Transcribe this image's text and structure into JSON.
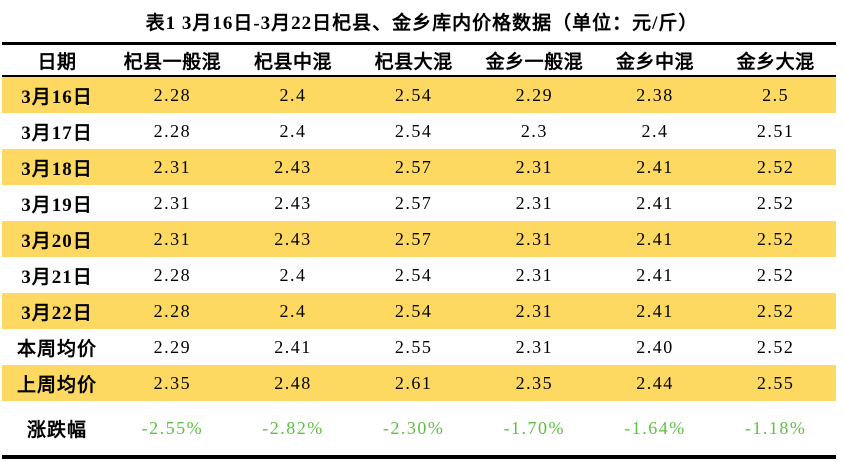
{
  "title": "表1  3月16日-3月22日杞县、金乡库内价格数据（单位：元/斤）",
  "colors": {
    "row_highlight": "#fed961",
    "change_text": "#5fc143",
    "border": "#000000"
  },
  "chart_data": {
    "type": "table",
    "title": "表1  3月16日-3月22日杞县、金乡库内价格数据（单位：元/斤）",
    "columns": [
      "日期",
      "杞县一般混",
      "杞县中混",
      "杞县大混",
      "金乡一般混",
      "金乡中混",
      "金乡大混"
    ],
    "rows": [
      {
        "label": "3月16日",
        "values": [
          "2.28",
          "2.4",
          "2.54",
          "2.29",
          "2.38",
          "2.5"
        ],
        "highlight": true,
        "change": false
      },
      {
        "label": "3月17日",
        "values": [
          "2.28",
          "2.4",
          "2.54",
          "2.3",
          "2.4",
          "2.51"
        ],
        "highlight": false,
        "change": false
      },
      {
        "label": "3月18日",
        "values": [
          "2.31",
          "2.43",
          "2.57",
          "2.31",
          "2.41",
          "2.52"
        ],
        "highlight": true,
        "change": false
      },
      {
        "label": "3月19日",
        "values": [
          "2.31",
          "2.43",
          "2.57",
          "2.31",
          "2.41",
          "2.52"
        ],
        "highlight": false,
        "change": false
      },
      {
        "label": "3月20日",
        "values": [
          "2.31",
          "2.43",
          "2.57",
          "2.31",
          "2.41",
          "2.52"
        ],
        "highlight": true,
        "change": false
      },
      {
        "label": "3月21日",
        "values": [
          "2.28",
          "2.4",
          "2.54",
          "2.31",
          "2.41",
          "2.52"
        ],
        "highlight": false,
        "change": false
      },
      {
        "label": "3月22日",
        "values": [
          "2.28",
          "2.4",
          "2.54",
          "2.31",
          "2.41",
          "2.52"
        ],
        "highlight": true,
        "change": false
      },
      {
        "label": "本周均价",
        "values": [
          "2.29",
          "2.41",
          "2.55",
          "2.31",
          "2.40",
          "2.52"
        ],
        "highlight": false,
        "change": false
      },
      {
        "label": "上周均价",
        "values": [
          "2.35",
          "2.48",
          "2.61",
          "2.35",
          "2.44",
          "2.55"
        ],
        "highlight": true,
        "change": false
      },
      {
        "label": "涨跌幅",
        "values": [
          "-2.55%",
          "-2.82%",
          "-2.30%",
          "-1.70%",
          "-1.64%",
          "-1.18%"
        ],
        "highlight": false,
        "change": true
      }
    ]
  }
}
